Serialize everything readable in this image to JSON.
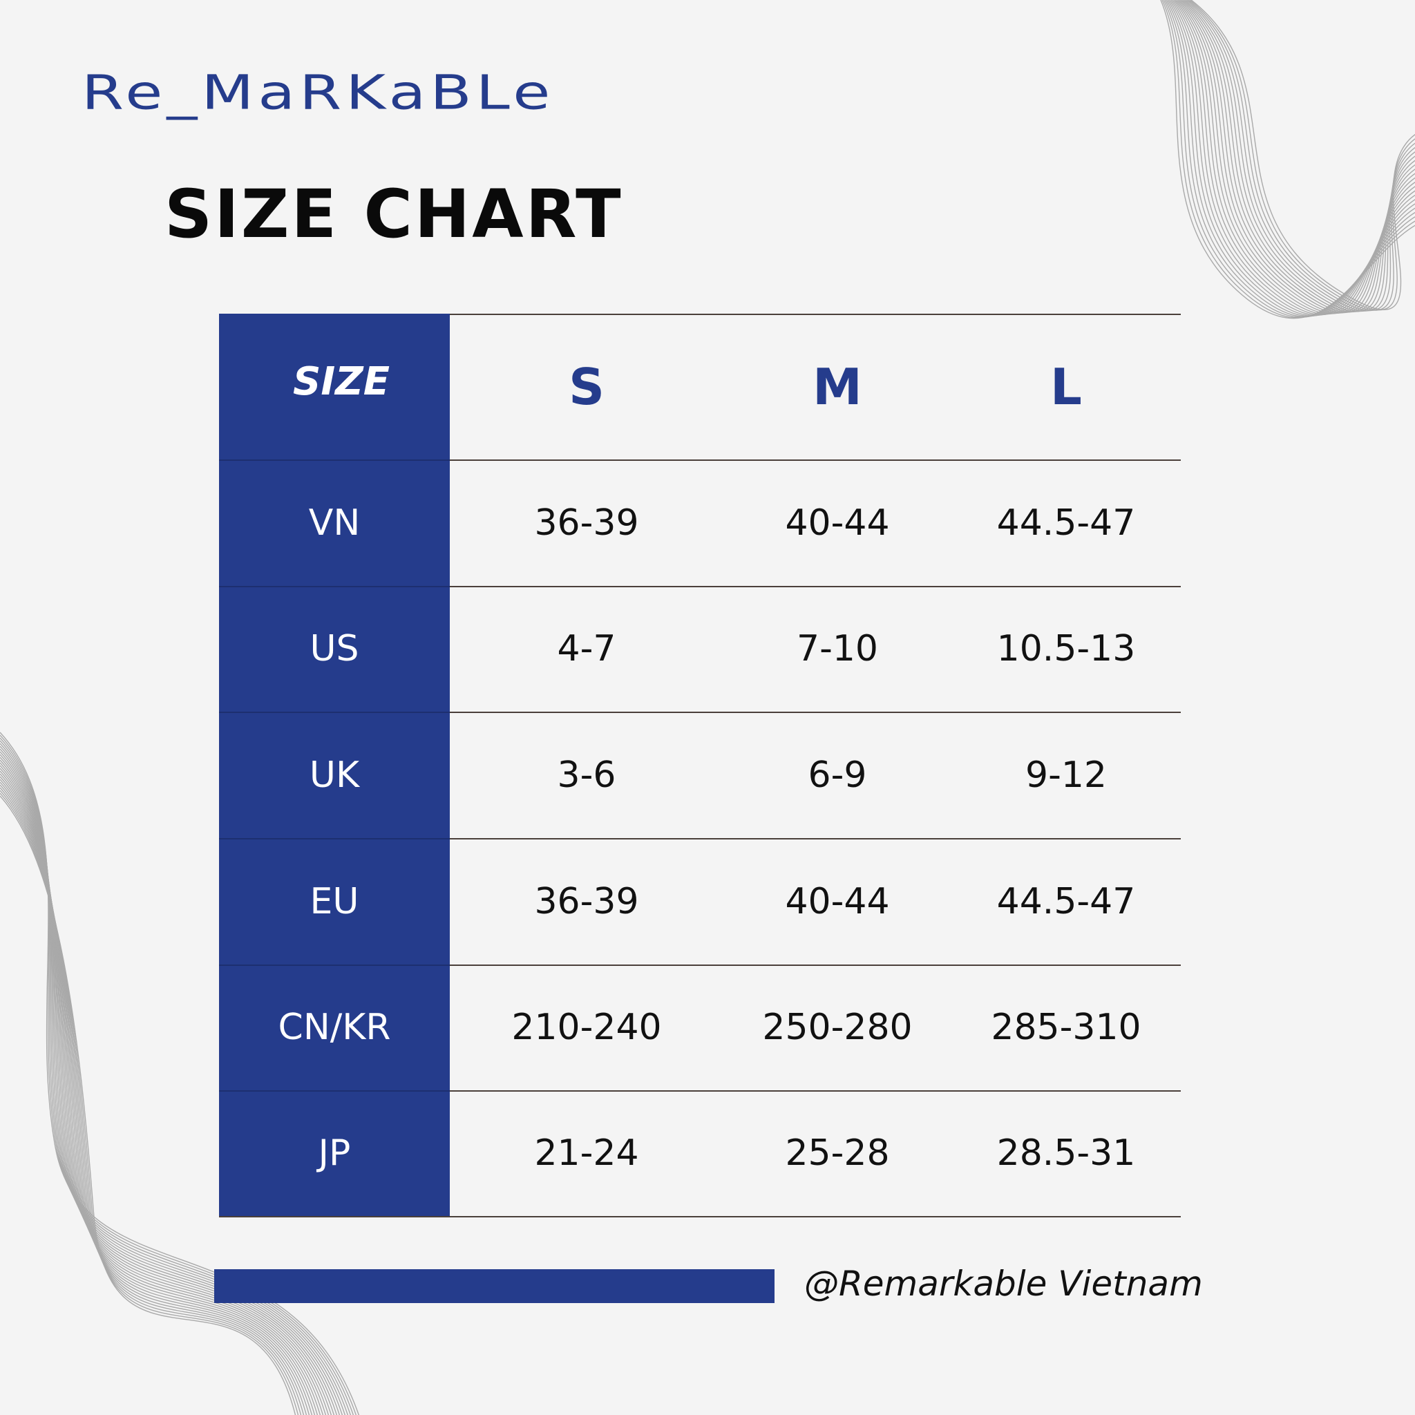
{
  "brand": {
    "logo_text": "Re_MaRKaBLe",
    "handle": "@Remarkable Vietnam"
  },
  "title": "SIZE CHART",
  "colors": {
    "accent": "#253c8c",
    "background": "#f4f4f4",
    "text": "#111111",
    "rule": "#4a3f3a"
  },
  "table": {
    "corner_label": "SIZE",
    "columns": [
      "S",
      "M",
      "L"
    ],
    "rows": [
      {
        "label": "VN",
        "values": [
          "36-39",
          "40-44",
          "44.5-47"
        ]
      },
      {
        "label": "US",
        "values": [
          "4-7",
          "7-10",
          "10.5-13"
        ]
      },
      {
        "label": "UK",
        "values": [
          "3-6",
          "6-9",
          "9-12"
        ]
      },
      {
        "label": "EU",
        "values": [
          "36-39",
          "40-44",
          "44.5-47"
        ]
      },
      {
        "label": "CN/KR",
        "values": [
          "210-240",
          "250-280",
          "285-310"
        ]
      },
      {
        "label": "JP",
        "values": [
          "21-24",
          "25-28",
          "28.5-31"
        ]
      }
    ]
  }
}
